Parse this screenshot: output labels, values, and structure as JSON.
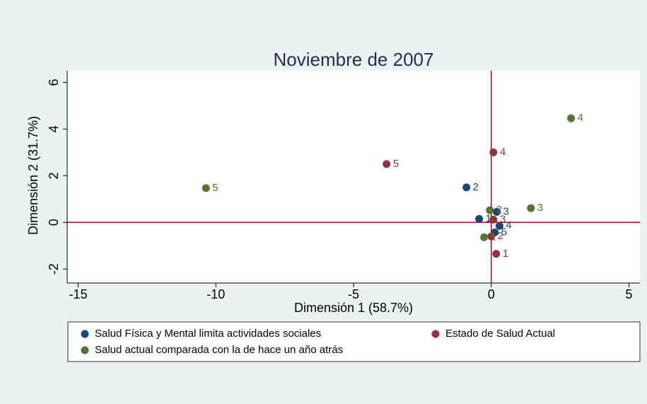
{
  "chart_data": {
    "type": "scatter",
    "title": "Noviembre de 2007",
    "x_label": "Dimensión 1 (58.7%)",
    "y_label": "Dimensión 2 (31.7%)",
    "xlim": [
      -15.4,
      5.4
    ],
    "xticks": [
      -15,
      -10,
      -5,
      0,
      5
    ],
    "ylim": [
      -2.6,
      6.5
    ],
    "yticks": [
      -2,
      0,
      2,
      4,
      6
    ],
    "xline": 0,
    "yline": 0,
    "reference_line_color": "#b0002a",
    "series": [
      {
        "name": "Salud Física y Mental limita actividades sociales",
        "color": "#1a476f",
        "x": [
          -0.44,
          -0.9,
          0.2,
          0.3,
          0.13
        ],
        "values": [
          0.15,
          1.5,
          0.45,
          -0.15,
          -0.43
        ],
        "labels": [
          "1",
          "2",
          "3",
          "4",
          "5"
        ]
      },
      {
        "name": "Estado de Salud Actual",
        "color": "#90353b",
        "x": [
          0.18,
          0,
          0.08,
          0.08,
          -3.8
        ],
        "values": [
          -1.35,
          -0.6,
          0.12,
          3.0,
          2.5
        ],
        "labels": [
          "1",
          "2",
          "3",
          "4",
          "5"
        ]
      },
      {
        "name": "Salud actual comparada con la de hace un año atrás",
        "color": "#55752f",
        "x": [
          -0.26,
          -0.05,
          1.44,
          2.9,
          -10.36
        ],
        "values": [
          -0.64,
          0.52,
          0.61,
          4.46,
          1.47
        ],
        "labels": [
          "1",
          "2",
          "3",
          "4",
          "5"
        ]
      }
    ]
  }
}
